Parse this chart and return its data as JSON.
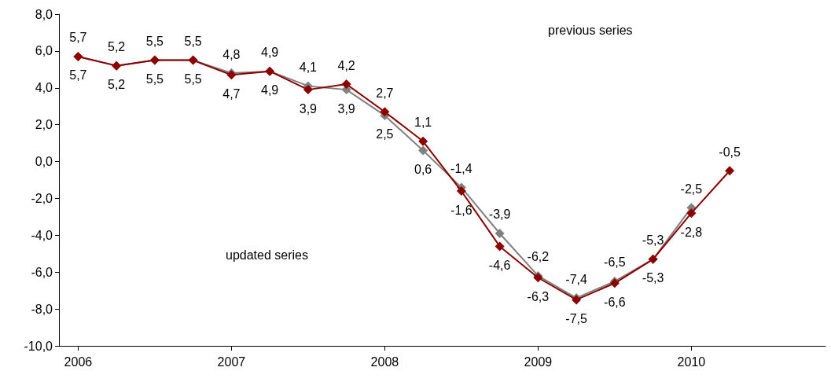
{
  "chart_data": {
    "type": "line",
    "categories": [
      "2006",
      null,
      null,
      null,
      "2007",
      null,
      null,
      null,
      "2008",
      null,
      null,
      null,
      "2009",
      null,
      null,
      null,
      "2010",
      null,
      null,
      null
    ],
    "series": [
      {
        "color": "#808080",
        "values": [
          5.7,
          5.2,
          5.5,
          5.5,
          4.8,
          4.9,
          4.1,
          3.9,
          2.5,
          0.6,
          -1.4,
          -3.9,
          -6.2,
          -7.4,
          -6.5,
          -5.3,
          -2.5,
          null,
          null,
          null
        ],
        "value_labels": [
          "5,7",
          "5,2",
          "5,5",
          "5,5",
          "4,8",
          "4,9",
          "4,1",
          "3,9",
          "2,5",
          "0,6",
          "-1,4",
          "-3,9",
          "-6,2",
          "-7,4",
          "-6,5",
          "-5,3",
          "-2,5",
          null,
          null,
          null
        ]
      },
      {
        "color": "#8b0000",
        "values": [
          5.7,
          5.2,
          5.5,
          5.5,
          4.7,
          4.9,
          3.9,
          4.2,
          2.7,
          1.1,
          -1.6,
          -4.6,
          -6.3,
          -7.5,
          -6.6,
          -5.3,
          -2.8,
          -0.5,
          null,
          null
        ],
        "value_labels": [
          "5,7",
          "5,2",
          "5,5",
          "5,5",
          "4,7",
          "4,9",
          "3,9",
          "4,2",
          "2,7",
          "1,1",
          "-1,6",
          "-4,6",
          "-6,3",
          "-7,5",
          "-6,6",
          "-5,3",
          "-2,8",
          "-0,5",
          null,
          null
        ]
      }
    ],
    "ylim": [
      -10,
      8
    ],
    "yticks": [
      {
        "value": -10,
        "label": "-10,0"
      },
      {
        "value": -8,
        "label": "-8,0"
      },
      {
        "value": -6,
        "label": "-6,0"
      },
      {
        "value": -4,
        "label": "-4,0"
      },
      {
        "value": -2,
        "label": "-2,0"
      },
      {
        "value": 0,
        "label": "0,0"
      },
      {
        "value": 2,
        "label": "2,0"
      },
      {
        "value": 4,
        "label": "4,0"
      },
      {
        "value": 6,
        "label": "6,0"
      },
      {
        "value": 8,
        "label": "8,0"
      }
    ],
    "annotations": [
      "previous series",
      "updated series"
    ],
    "marker": "diamond",
    "line_style": "solid",
    "grid": false
  }
}
